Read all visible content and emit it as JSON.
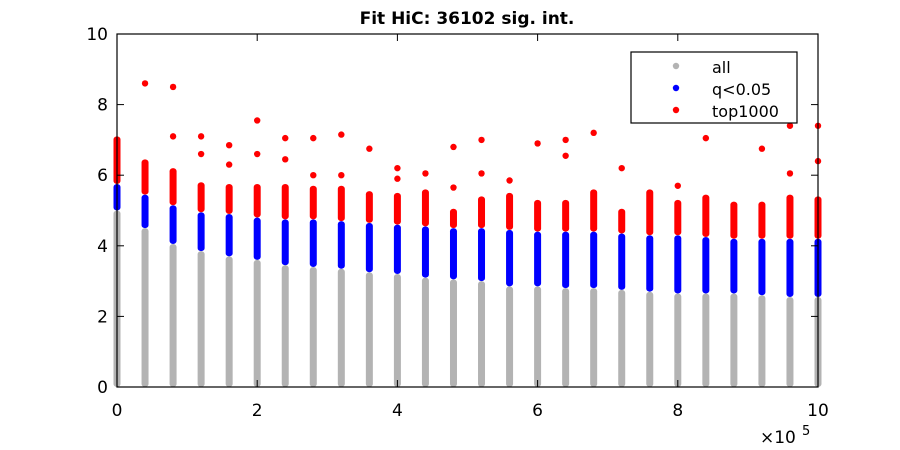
{
  "chart_data": {
    "type": "scatter",
    "title": "Fit HiC: 36102 sig. int.",
    "xlabel": "",
    "ylabel": "",
    "x_exponent_label": "×10",
    "x_exponent_power": "5",
    "xlim": [
      0,
      10
    ],
    "ylim": [
      0,
      10
    ],
    "x_ticks": [
      0,
      2,
      4,
      6,
      8,
      10
    ],
    "x_tick_labels": [
      "0",
      "2",
      "4",
      "6",
      "8",
      "10"
    ],
    "y_ticks": [
      0,
      2,
      4,
      6,
      8,
      10
    ],
    "y_tick_labels": [
      "0",
      "2",
      "4",
      "6",
      "8",
      "10"
    ],
    "grid": false,
    "legend_position": "top-right",
    "series": [
      {
        "name": "all",
        "color": "#b3b3b3"
      },
      {
        "name": "q<0.05",
        "color": "#0000ff"
      },
      {
        "name": "top1000",
        "color": "#ff0000"
      }
    ],
    "columns": [
      {
        "x": 0.0,
        "all_max": 5.0,
        "q_max": 5.75,
        "top_max": 7.1,
        "outliers": []
      },
      {
        "x": 0.4,
        "all_max": 4.5,
        "q_max": 5.45,
        "top_max": 6.45,
        "outliers": [
          8.6
        ]
      },
      {
        "x": 0.8,
        "all_max": 4.05,
        "q_max": 5.15,
        "top_max": 6.2,
        "outliers": [
          7.1,
          8.5
        ]
      },
      {
        "x": 1.2,
        "all_max": 3.85,
        "q_max": 4.95,
        "top_max": 5.8,
        "outliers": [
          6.6,
          7.1
        ]
      },
      {
        "x": 1.6,
        "all_max": 3.7,
        "q_max": 4.9,
        "top_max": 5.75,
        "outliers": [
          6.3,
          6.85
        ]
      },
      {
        "x": 2.0,
        "all_max": 3.6,
        "q_max": 4.8,
        "top_max": 5.75,
        "outliers": [
          6.6,
          7.55
        ]
      },
      {
        "x": 2.4,
        "all_max": 3.45,
        "q_max": 4.75,
        "top_max": 5.75,
        "outliers": [
          6.45,
          7.05
        ]
      },
      {
        "x": 2.8,
        "all_max": 3.4,
        "q_max": 4.75,
        "top_max": 5.7,
        "outliers": [
          6.0,
          7.05
        ]
      },
      {
        "x": 3.2,
        "all_max": 3.35,
        "q_max": 4.7,
        "top_max": 5.7,
        "outliers": [
          6.0,
          7.15
        ]
      },
      {
        "x": 3.6,
        "all_max": 3.25,
        "q_max": 4.65,
        "top_max": 5.55,
        "outliers": [
          6.75
        ]
      },
      {
        "x": 4.0,
        "all_max": 3.2,
        "q_max": 4.6,
        "top_max": 5.5,
        "outliers": [
          5.9,
          6.2
        ]
      },
      {
        "x": 4.4,
        "all_max": 3.1,
        "q_max": 4.55,
        "top_max": 5.6,
        "outliers": [
          6.05
        ]
      },
      {
        "x": 4.8,
        "all_max": 3.05,
        "q_max": 4.5,
        "top_max": 5.05,
        "outliers": [
          5.65,
          6.8
        ]
      },
      {
        "x": 5.2,
        "all_max": 3.0,
        "q_max": 4.5,
        "top_max": 5.4,
        "outliers": [
          6.05,
          7.0
        ]
      },
      {
        "x": 5.6,
        "all_max": 2.85,
        "q_max": 4.45,
        "top_max": 5.5,
        "outliers": [
          5.85
        ]
      },
      {
        "x": 6.0,
        "all_max": 2.85,
        "q_max": 4.4,
        "top_max": 5.3,
        "outliers": [
          6.9
        ]
      },
      {
        "x": 6.4,
        "all_max": 2.8,
        "q_max": 4.4,
        "top_max": 5.3,
        "outliers": [
          6.55,
          7.0
        ]
      },
      {
        "x": 6.8,
        "all_max": 2.8,
        "q_max": 4.4,
        "top_max": 5.6,
        "outliers": [
          7.2
        ]
      },
      {
        "x": 7.2,
        "all_max": 2.75,
        "q_max": 4.35,
        "top_max": 5.05,
        "outliers": [
          6.2
        ]
      },
      {
        "x": 7.6,
        "all_max": 2.7,
        "q_max": 4.3,
        "top_max": 5.6,
        "outliers": []
      },
      {
        "x": 8.0,
        "all_max": 2.65,
        "q_max": 4.3,
        "top_max": 5.3,
        "outliers": [
          5.7
        ]
      },
      {
        "x": 8.4,
        "all_max": 2.65,
        "q_max": 4.25,
        "top_max": 5.45,
        "outliers": [
          7.05
        ]
      },
      {
        "x": 8.8,
        "all_max": 2.65,
        "q_max": 4.2,
        "top_max": 5.25,
        "outliers": []
      },
      {
        "x": 9.2,
        "all_max": 2.6,
        "q_max": 4.2,
        "top_max": 5.25,
        "outliers": [
          6.75
        ]
      },
      {
        "x": 9.6,
        "all_max": 2.55,
        "q_max": 4.2,
        "top_max": 5.45,
        "outliers": [
          6.05,
          7.4
        ]
      },
      {
        "x": 10.0,
        "all_max": 2.55,
        "q_max": 4.2,
        "top_max": 5.4,
        "outliers": [
          6.4,
          7.4
        ]
      }
    ]
  }
}
